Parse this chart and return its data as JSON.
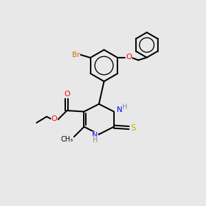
{
  "background_color": "#e8e8e8",
  "bond_color": "#000000",
  "atom_colors": {
    "Br": "#cc6600",
    "O": "#ff0000",
    "N": "#0000ff",
    "S": "#ccaa00",
    "C": "#000000",
    "H": "#555555"
  },
  "figsize": [
    3.0,
    3.0
  ],
  "dpi": 100
}
